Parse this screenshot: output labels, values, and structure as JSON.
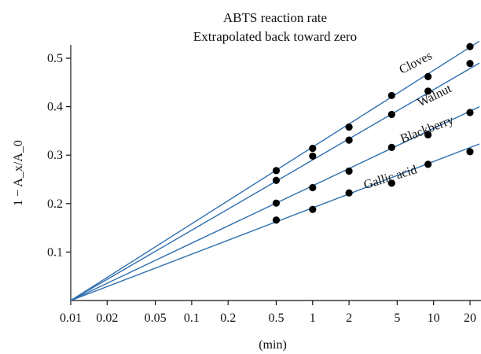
{
  "chart_data": {
    "type": "scatter",
    "title": "ABTS reaction rate",
    "subtitle": "Extrapolated back toward zero",
    "xlabel": "(min)",
    "ylabel": "1 − A_x/A_0",
    "xscale": "log",
    "xlim": [
      0.01,
      22
    ],
    "ylim": [
      0,
      0.53
    ],
    "xticks": [
      0.01,
      0.02,
      0.05,
      0.1,
      0.2,
      0.5,
      1,
      2,
      5,
      10,
      20
    ],
    "xtick_labels": [
      "0.01",
      "0.02",
      "0.05",
      "0.1",
      "0.2",
      "0.5",
      "1",
      "2",
      "5",
      "10",
      "20"
    ],
    "yticks": [
      0.1,
      0.2,
      0.3,
      0.4,
      0.5
    ],
    "ytick_labels": [
      "0.1",
      "0.2",
      "0.3",
      "0.4",
      "0.5"
    ],
    "grid": false,
    "line_color": "#2f6fb0",
    "point_color": "#000000",
    "series": [
      {
        "name": "Cloves",
        "x": [
          0.5,
          1,
          2,
          4.5,
          9,
          20
        ],
        "y": [
          0.268,
          0.314,
          0.358,
          0.423,
          0.462,
          0.524
        ],
        "fit_end": 0.535
      },
      {
        "name": "Walnut",
        "x": [
          0.5,
          1,
          2,
          4.5,
          9,
          20
        ],
        "y": [
          0.248,
          0.298,
          0.331,
          0.384,
          0.432,
          0.489
        ],
        "fit_end": 0.49
      },
      {
        "name": "Blackberry",
        "x": [
          0.5,
          1,
          2,
          4.5,
          9,
          20
        ],
        "y": [
          0.201,
          0.233,
          0.267,
          0.316,
          0.342,
          0.388
        ],
        "fit_end": 0.4
      },
      {
        "name": "Gallic acid",
        "x": [
          0.5,
          1,
          2,
          4.5,
          9,
          20
        ],
        "y": [
          0.166,
          0.188,
          0.222,
          0.242,
          0.281,
          0.307
        ],
        "fit_end": 0.323
      }
    ]
  }
}
